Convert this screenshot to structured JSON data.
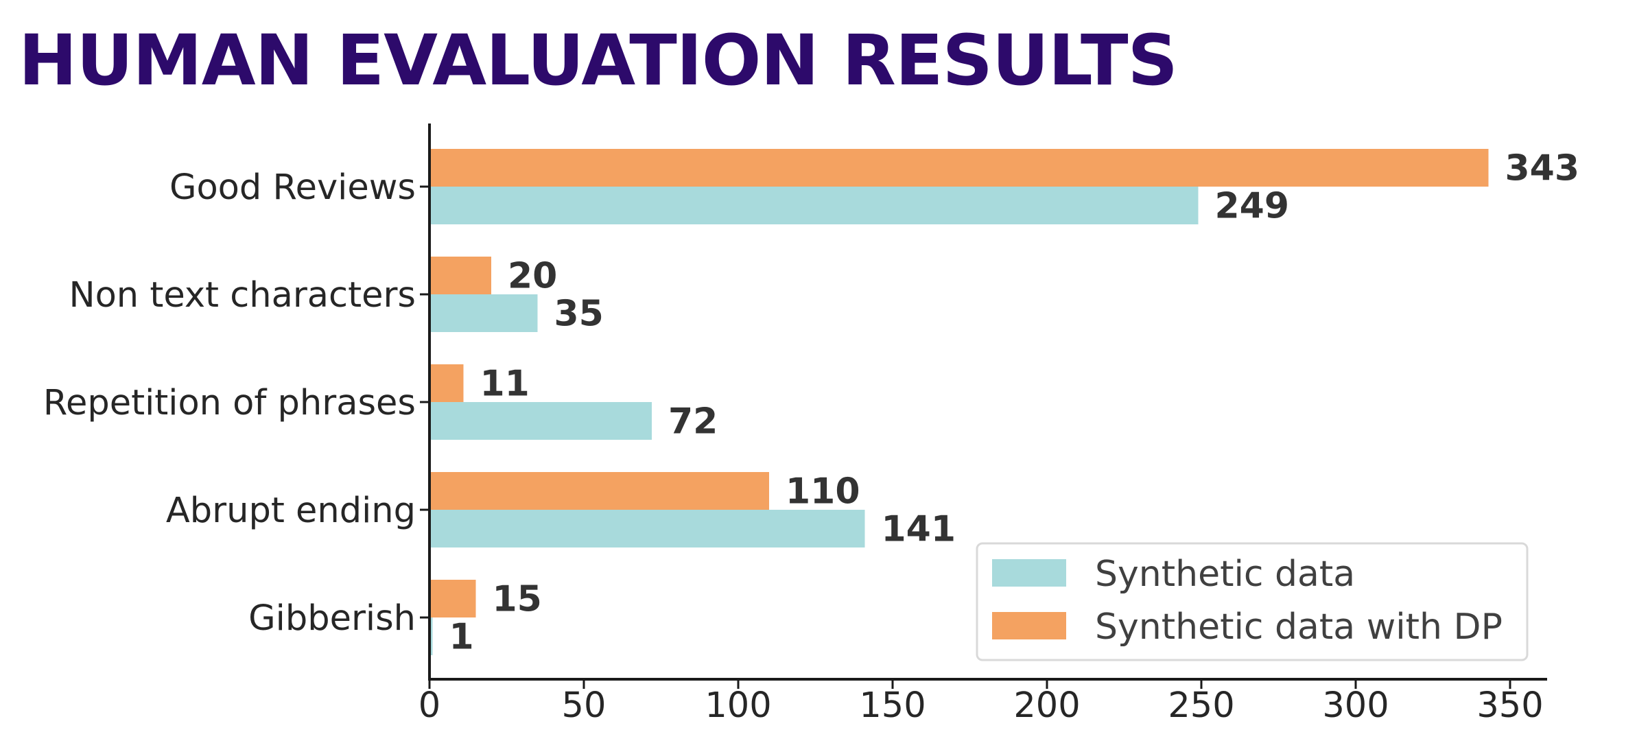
{
  "title": "HUMAN EVALUATION RESULTS",
  "colors": {
    "title": "#2d0a6b",
    "series_synthetic": "#a8dadc",
    "series_dp": "#f4a261",
    "axis": "#1a1a1a",
    "text": "#262626"
  },
  "chart_data": {
    "type": "bar",
    "orientation": "horizontal",
    "title": "HUMAN EVALUATION RESULTS",
    "categories": [
      "Good Reviews",
      "Non text characters",
      "Repetition of phrases",
      "Abrupt ending",
      "Gibberish"
    ],
    "series": [
      {
        "name": "Synthetic data",
        "color": "#a8dadc",
        "values": [
          249,
          35,
          72,
          141,
          1
        ]
      },
      {
        "name": "Synthetic data with DP",
        "color": "#f4a261",
        "values": [
          343,
          20,
          11,
          110,
          15
        ]
      }
    ],
    "xlim": [
      0,
      360
    ],
    "xticks": [
      0,
      50,
      100,
      150,
      200,
      250,
      300,
      350
    ],
    "xlabel": "",
    "ylabel": "",
    "grid": false,
    "legend_position": "bottom-right"
  }
}
